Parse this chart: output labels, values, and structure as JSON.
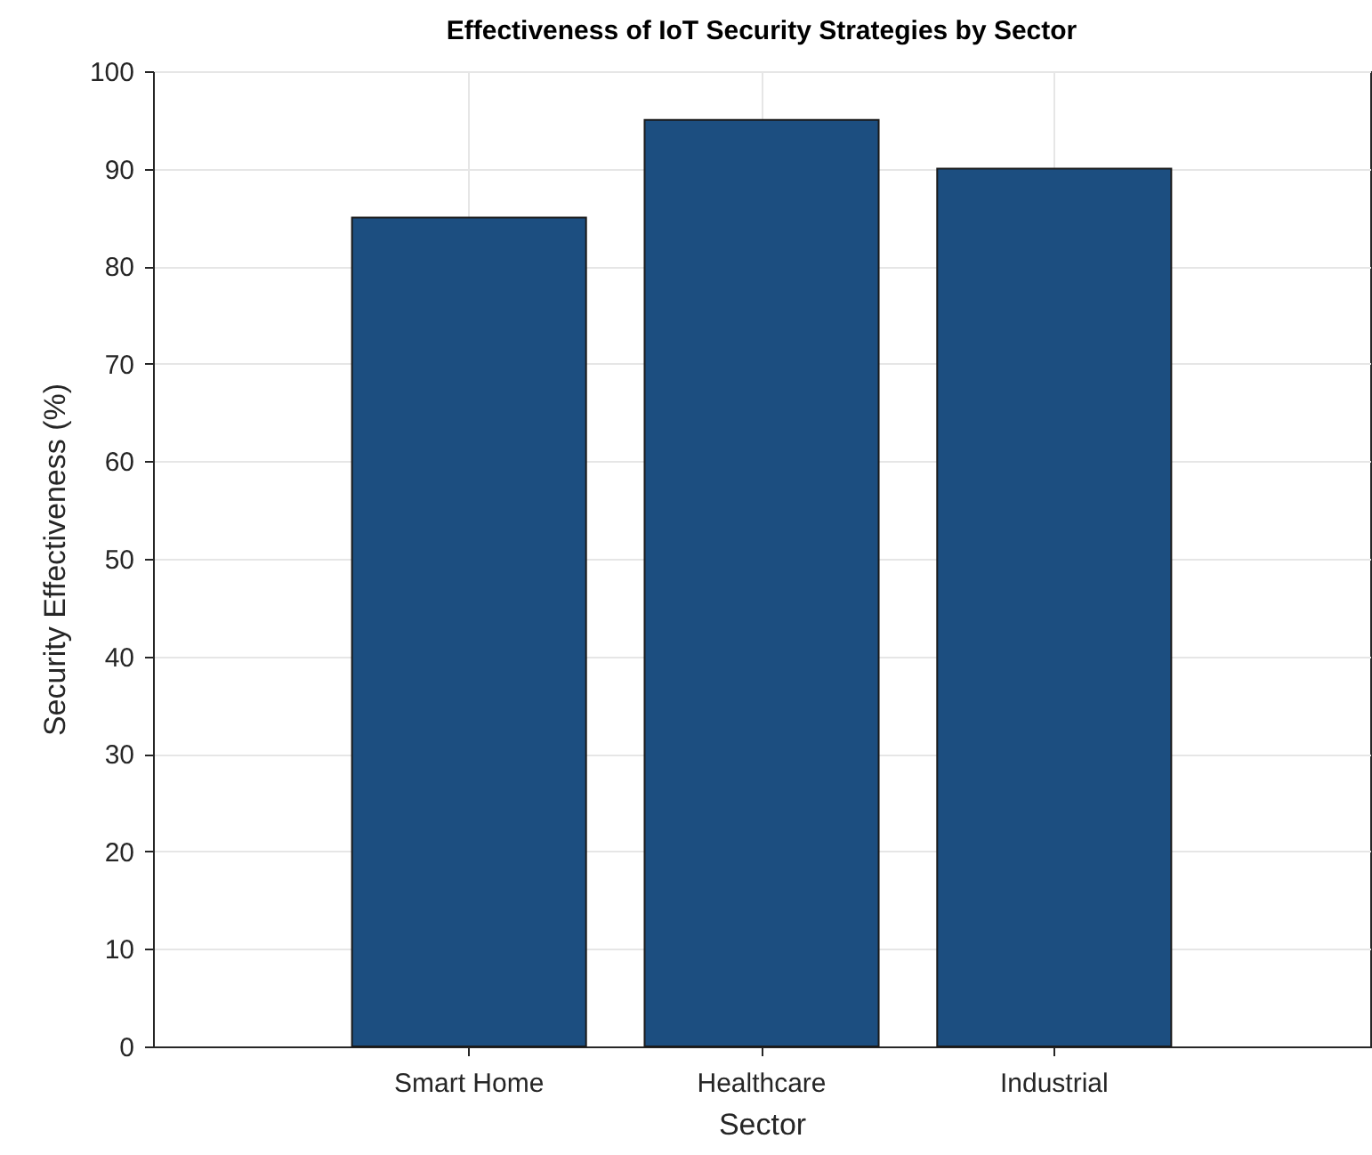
{
  "chart_data": {
    "type": "bar",
    "title": "Effectiveness of IoT Security Strategies by Sector",
    "xlabel": "Sector",
    "ylabel": "Security Effectiveness (%)",
    "categories": [
      "Smart Home",
      "Healthcare",
      "Industrial"
    ],
    "values": [
      85,
      95,
      90
    ],
    "color": "#1c4e80",
    "ylim": [
      0,
      100
    ],
    "yticks": [
      0,
      10,
      20,
      30,
      40,
      50,
      60,
      70,
      80,
      90,
      100
    ],
    "grid": true
  }
}
